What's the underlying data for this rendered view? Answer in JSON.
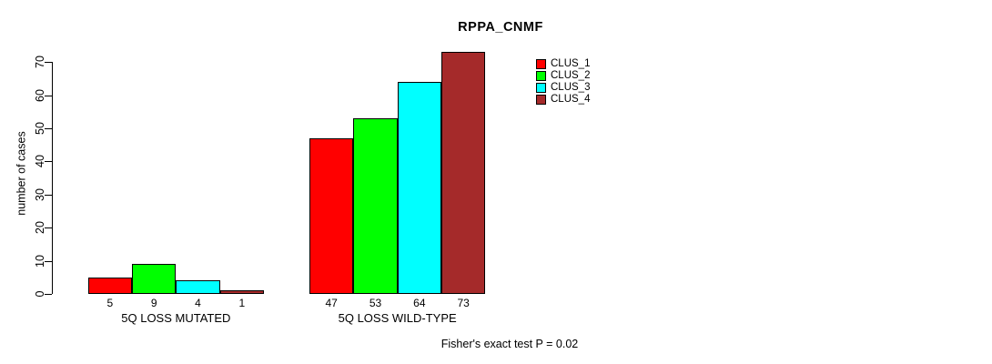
{
  "chart_data": {
    "type": "bar",
    "title": "RPPA_CNMF",
    "xlabel": "",
    "ylabel": "number of cases",
    "ylim": [
      0,
      70
    ],
    "yticks": [
      0,
      10,
      20,
      30,
      40,
      50,
      60,
      70
    ],
    "grid": false,
    "legend_position": "top-right",
    "categories": [
      "5Q LOSS MUTATED",
      "5Q LOSS WILD-TYPE"
    ],
    "series": [
      {
        "name": "CLUS_1",
        "color": "#ff0000",
        "values": [
          5,
          47
        ]
      },
      {
        "name": "CLUS_2",
        "color": "#00ff00",
        "values": [
          9,
          53
        ]
      },
      {
        "name": "CLUS_3",
        "color": "#00ffff",
        "values": [
          4,
          64
        ]
      },
      {
        "name": "CLUS_4",
        "color": "#a52a2a",
        "values": [
          1,
          73
        ]
      }
    ],
    "bar_value_labels": true,
    "annotation": "Fisher's exact test P = 0.02"
  }
}
